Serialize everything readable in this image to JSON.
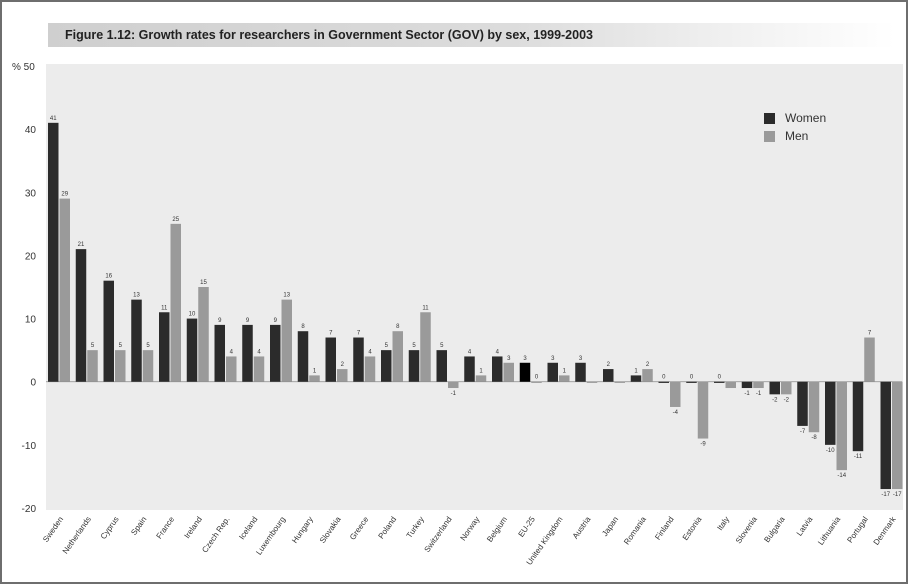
{
  "chart_data": {
    "type": "bar",
    "title": "Figure 1.12: Growth rates for researchers in Government Sector (GOV) by sex, 1999-2003",
    "ylabel": "% 50",
    "ylim": [
      -20,
      50
    ],
    "yticks": [
      -20,
      -10,
      0,
      10,
      20,
      30,
      40
    ],
    "grid": false,
    "legend_position": "top-right",
    "categories": [
      "Sweden",
      "Netherlands",
      "Cyprus",
      "Spain",
      "France",
      "Ireland",
      "Czech Rep.",
      "Iceland",
      "Luxembourg",
      "Hungary",
      "Slovakia",
      "Greece",
      "Poland",
      "Turkey",
      "Switzerland",
      "Norway",
      "Belgium",
      "EU-25",
      "United Kingdom",
      "Austria",
      "Japan",
      "Romania",
      "Finland",
      "Estonia",
      "Italy",
      "Slovenia",
      "Bulgaria",
      "Latvia",
      "Lithuania",
      "Portugal",
      "Denmark"
    ],
    "series": [
      {
        "name": "Women",
        "color": "#2b2b2b",
        "values": [
          41,
          21,
          16,
          13,
          11,
          10,
          9,
          9,
          9,
          8,
          7,
          7,
          5,
          5,
          5,
          4,
          4,
          3,
          3,
          3,
          2,
          1,
          0,
          0,
          0,
          -1,
          -2,
          -7,
          -10,
          -11,
          -17
        ],
        "labels": [
          "41",
          "21",
          "16",
          "13",
          "11",
          "10",
          "9",
          "9",
          "9",
          "8",
          "7",
          "7",
          "5",
          "5",
          "5",
          "4",
          "4",
          "3",
          "3",
          "3",
          "2",
          "1",
          "0",
          "0",
          "0",
          "-1",
          "-2",
          "-7",
          "-10",
          "-11",
          "-17"
        ]
      },
      {
        "name": "Men",
        "color": "#9a9a9a",
        "values": [
          29,
          5,
          5,
          5,
          25,
          15,
          4,
          4,
          13,
          1,
          2,
          4,
          8,
          11,
          -1,
          1,
          3,
          0,
          1,
          0,
          0,
          2,
          -4,
          -9,
          -1,
          -1,
          -2,
          -8,
          -14,
          7,
          -17
        ],
        "labels": [
          "29",
          "5",
          "5",
          "5",
          "25",
          "15",
          "4",
          "4",
          "13",
          "1",
          "2",
          "4",
          "8",
          "11",
          "-1",
          "1",
          "3",
          "0",
          "1",
          "",
          "",
          "2",
          "-4",
          "-9",
          "",
          "-1",
          "-2",
          "-8",
          "-14",
          "7",
          "-17"
        ]
      }
    ],
    "highlight_category": "EU-25",
    "highlight_color": "#000000"
  }
}
